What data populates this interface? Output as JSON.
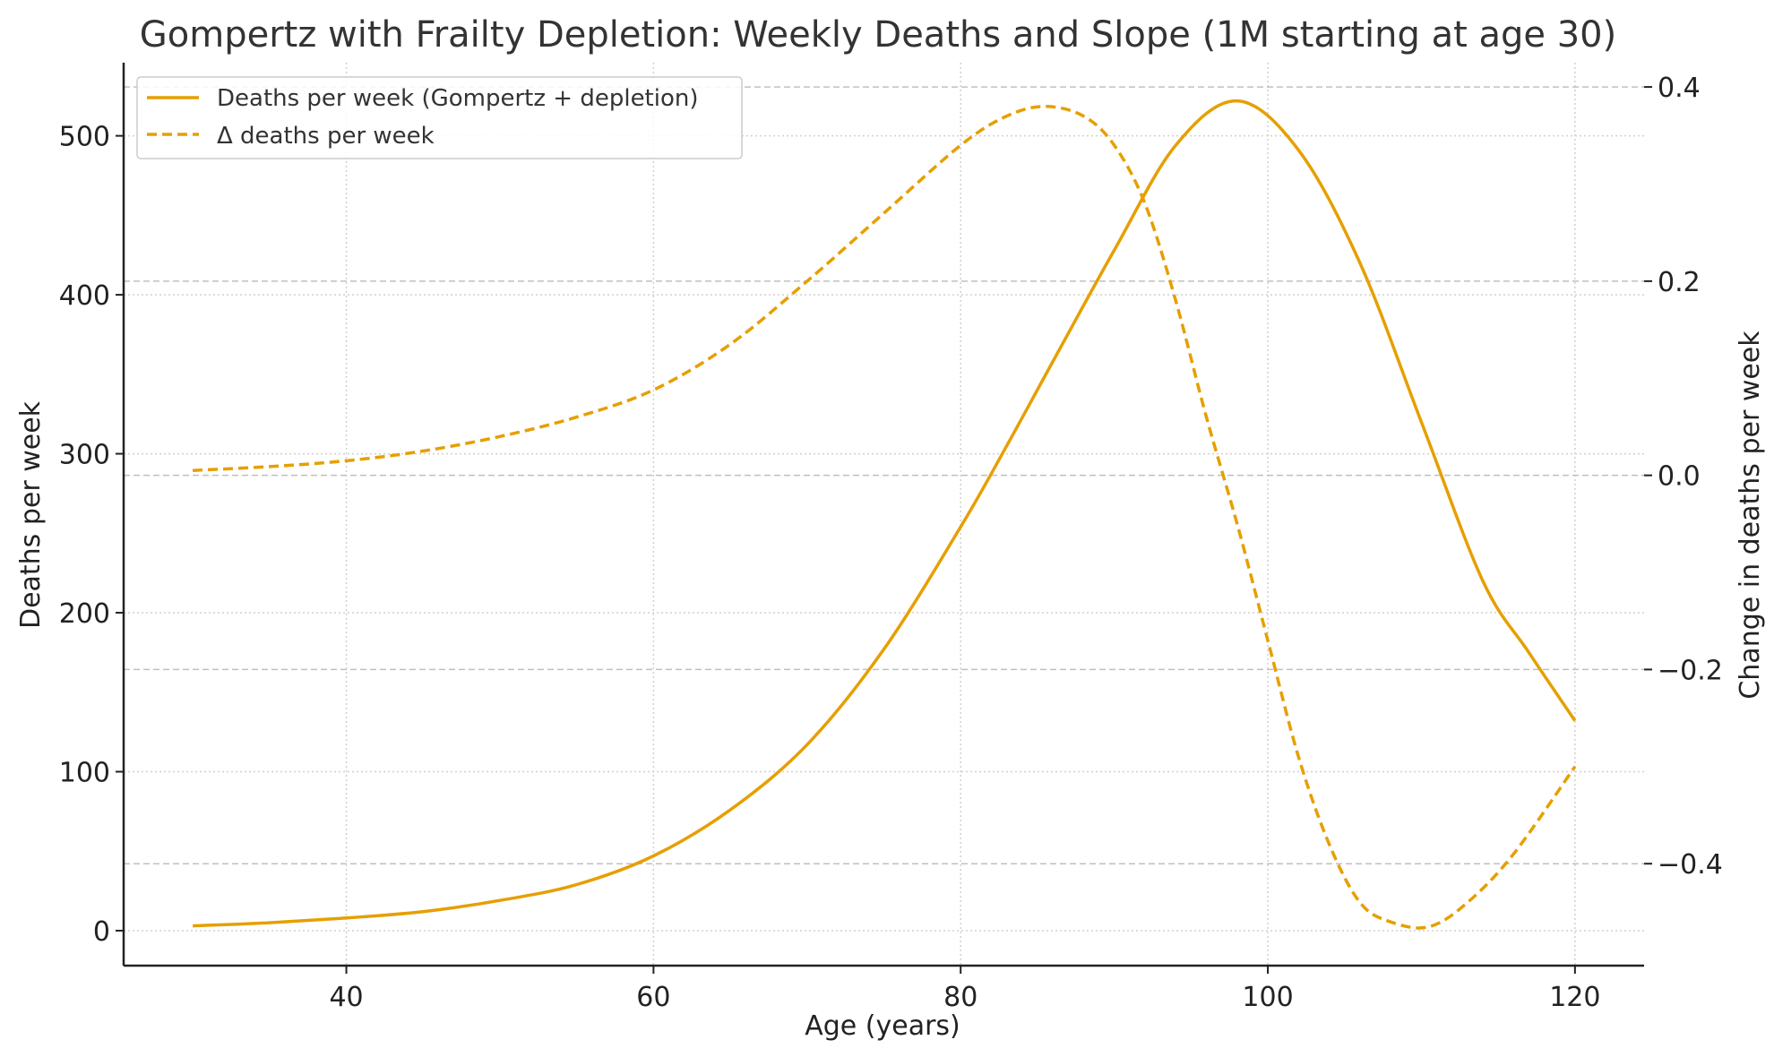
{
  "chart_data": {
    "type": "line",
    "title": "Gompertz with Frailty Depletion: Weekly Deaths and Slope (1M starting at age 30)",
    "xlabel": "Age (years)",
    "ylabel": "Deaths per week",
    "y2label": "Change in deaths per week",
    "xlim": [
      25.5,
      124.5
    ],
    "ylim": [
      -22,
      546
    ],
    "y2lim": [
      -0.505,
      0.425
    ],
    "xticks": [
      40,
      60,
      80,
      100,
      120
    ],
    "yticks": [
      0,
      100,
      200,
      300,
      400,
      500
    ],
    "y2ticks": [
      -0.4,
      -0.2,
      0.0,
      0.2,
      0.4
    ],
    "y2tick_labels": [
      "−0.4",
      "−0.2",
      "0.0",
      "0.2",
      "0.4"
    ],
    "grid": true,
    "legend": {
      "position": "top-left",
      "entries": [
        "Deaths per week (Gompertz + depletion)",
        "Δ deaths per week"
      ]
    },
    "color": "#E69F00",
    "series": [
      {
        "name": "Deaths per week (Gompertz + depletion)",
        "axis": "left",
        "style": "solid",
        "x": [
          30,
          35,
          40,
          45,
          50,
          55,
          60,
          65,
          70,
          75,
          80,
          83,
          86,
          90,
          94,
          98,
          102,
          106,
          110,
          114,
          117,
          120
        ],
        "y": [
          3,
          5,
          8,
          12,
          19,
          29,
          47,
          76,
          117,
          177,
          254,
          305,
          358,
          428,
          494,
          522,
          491,
          420,
          320,
          220,
          175,
          132
        ]
      },
      {
        "name": "Δ deaths per week",
        "axis": "right",
        "style": "dashed",
        "x": [
          30,
          35,
          40,
          45,
          50,
          55,
          60,
          65,
          70,
          75,
          80,
          83,
          85.5,
          88,
          90,
          92,
          94,
          96,
          98,
          100,
          102,
          104,
          106,
          108,
          110.5,
          113,
          116,
          120
        ],
        "y": [
          0.005,
          0.009,
          0.015,
          0.025,
          0.04,
          0.06,
          0.088,
          0.135,
          0.2,
          0.27,
          0.34,
          0.37,
          0.38,
          0.37,
          0.34,
          0.28,
          0.18,
          0.06,
          -0.05,
          -0.17,
          -0.29,
          -0.38,
          -0.44,
          -0.46,
          -0.465,
          -0.44,
          -0.39,
          -0.3
        ]
      }
    ]
  }
}
